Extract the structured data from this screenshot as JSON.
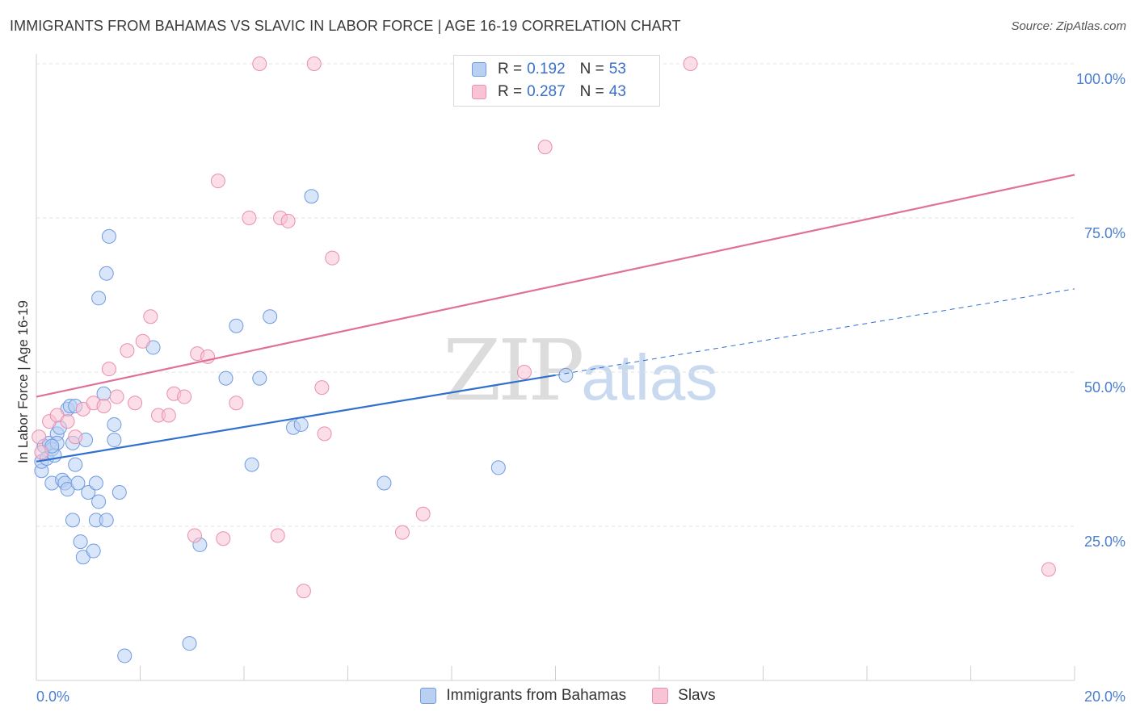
{
  "title": "IMMIGRANTS FROM BAHAMAS VS SLAVIC IN LABOR FORCE | AGE 16-19 CORRELATION CHART",
  "source": "Source: ZipAtlas.com",
  "watermark": {
    "zip": "ZIP",
    "atlas": "atlas"
  },
  "legend": {
    "r_label": "R =",
    "n_label": "N =",
    "rows": [
      {
        "r": "0.192",
        "n": "53",
        "fill": "#b9d0f2",
        "stroke": "#6f9be0"
      },
      {
        "r": "0.287",
        "n": "43",
        "fill": "#f8c3d4",
        "stroke": "#ea8fae"
      }
    ]
  },
  "chart_data": {
    "type": "scatter",
    "title": "IMMIGRANTS FROM BAHAMAS VS SLAVIC IN LABOR FORCE | AGE 16-19 CORRELATION CHART",
    "xlabel": "",
    "ylabel": "In Labor Force | Age 16-19",
    "xlim": [
      0,
      20
    ],
    "ylim": [
      0,
      100
    ],
    "x_tick_labels": [
      "0.0%",
      "20.0%"
    ],
    "y_ticks": [
      25,
      50,
      75,
      100
    ],
    "y_tick_labels": [
      "25.0%",
      "50.0%",
      "75.0%",
      "100.0%"
    ],
    "grid": true,
    "legend_position": "top-center",
    "series": [
      {
        "name": "Immigrants from Bahamas",
        "color": "#6f9be0",
        "fill": "#b9d0f2",
        "line_color": "#2f6fcf",
        "trend": {
          "x0": 0,
          "y0": 35.5,
          "x1": 10,
          "y1": 49.5,
          "dash_to_x": 20,
          "dash_to_y": 63.5
        },
        "points": [
          [
            0.1,
            34.0
          ],
          [
            0.1,
            35.5
          ],
          [
            0.15,
            38.0
          ],
          [
            0.2,
            36.0
          ],
          [
            0.25,
            38.5
          ],
          [
            0.3,
            37.5
          ],
          [
            0.3,
            32.0
          ],
          [
            0.35,
            36.5
          ],
          [
            0.4,
            40.0
          ],
          [
            0.4,
            38.5
          ],
          [
            0.45,
            41.0
          ],
          [
            0.5,
            32.5
          ],
          [
            0.55,
            32.0
          ],
          [
            0.6,
            44.0
          ],
          [
            0.6,
            31.0
          ],
          [
            0.65,
            44.5
          ],
          [
            0.7,
            26.0
          ],
          [
            0.7,
            38.5
          ],
          [
            0.75,
            44.5
          ],
          [
            0.75,
            35.0
          ],
          [
            0.8,
            32.0
          ],
          [
            0.85,
            22.5
          ],
          [
            0.9,
            20.0
          ],
          [
            0.95,
            39.0
          ],
          [
            1.0,
            30.5
          ],
          [
            1.1,
            21.0
          ],
          [
            1.15,
            26.0
          ],
          [
            1.15,
            32.0
          ],
          [
            1.2,
            62.0
          ],
          [
            1.2,
            29.0
          ],
          [
            1.3,
            46.5
          ],
          [
            1.35,
            66.0
          ],
          [
            1.35,
            26.0
          ],
          [
            1.4,
            72.0
          ],
          [
            1.5,
            41.5
          ],
          [
            1.5,
            39.0
          ],
          [
            1.6,
            30.5
          ],
          [
            1.7,
            4.0
          ],
          [
            2.25,
            54.0
          ],
          [
            2.95,
            6.0
          ],
          [
            3.15,
            22.0
          ],
          [
            3.65,
            49.0
          ],
          [
            3.85,
            57.5
          ],
          [
            4.15,
            35.0
          ],
          [
            4.3,
            49.0
          ],
          [
            4.5,
            59.0
          ],
          [
            4.95,
            41.0
          ],
          [
            5.1,
            41.5
          ],
          [
            5.3,
            78.5
          ],
          [
            6.7,
            32.0
          ],
          [
            8.9,
            34.5
          ],
          [
            10.2,
            49.5
          ],
          [
            0.3,
            38.0
          ]
        ]
      },
      {
        "name": "Slavs",
        "color": "#ea8fae",
        "fill": "#f8c3d4",
        "line_color": "#e0709a",
        "trend": {
          "x0": 0,
          "y0": 46.0,
          "x1": 20,
          "y1": 82.0
        },
        "points": [
          [
            0.05,
            39.5
          ],
          [
            0.1,
            37.0
          ],
          [
            0.25,
            42.0
          ],
          [
            0.4,
            43.0
          ],
          [
            0.6,
            42.0
          ],
          [
            0.75,
            39.5
          ],
          [
            0.9,
            44.0
          ],
          [
            1.1,
            45.0
          ],
          [
            1.3,
            44.5
          ],
          [
            1.4,
            50.5
          ],
          [
            1.55,
            46.0
          ],
          [
            1.75,
            53.5
          ],
          [
            1.9,
            45.0
          ],
          [
            2.05,
            55.0
          ],
          [
            2.2,
            59.0
          ],
          [
            2.35,
            43.0
          ],
          [
            2.55,
            43.0
          ],
          [
            2.65,
            46.5
          ],
          [
            2.85,
            46.0
          ],
          [
            3.05,
            23.5
          ],
          [
            3.1,
            53.0
          ],
          [
            3.3,
            52.5
          ],
          [
            3.5,
            81.0
          ],
          [
            3.6,
            23.0
          ],
          [
            3.85,
            45.0
          ],
          [
            4.1,
            75.0
          ],
          [
            4.3,
            100.0
          ],
          [
            4.65,
            23.5
          ],
          [
            4.7,
            75.0
          ],
          [
            4.85,
            74.5
          ],
          [
            5.15,
            14.5
          ],
          [
            5.35,
            100.0
          ],
          [
            5.5,
            47.5
          ],
          [
            5.55,
            40.0
          ],
          [
            5.7,
            68.5
          ],
          [
            7.05,
            24.0
          ],
          [
            7.45,
            27.0
          ],
          [
            9.3,
            100.0
          ],
          [
            9.4,
            50.0
          ],
          [
            9.8,
            86.5
          ],
          [
            10.2,
            100.0
          ],
          [
            12.6,
            100.0
          ],
          [
            19.5,
            18.0
          ]
        ]
      }
    ]
  }
}
